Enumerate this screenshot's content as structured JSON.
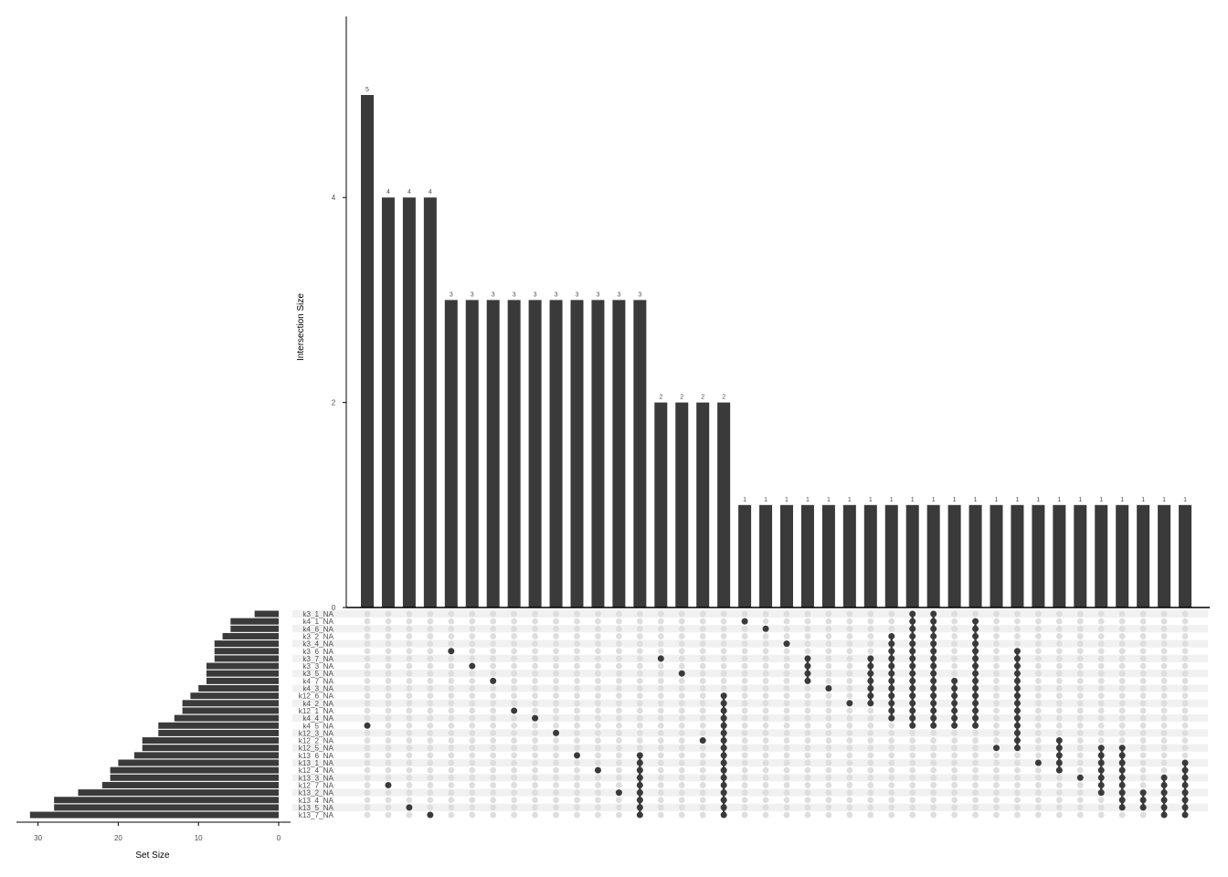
{
  "chart_data": {
    "type": "upset",
    "colors": {
      "bar": "#3a3a3a",
      "dot_active": "#3a3a3a",
      "dot_inactive": "#dedede",
      "stripe": "#f1f1f1"
    },
    "intersection_axis": {
      "ylabel": "Intersection Size",
      "ylim": [
        0,
        5.8
      ],
      "ticks": [
        0,
        2,
        4
      ]
    },
    "set_size_axis": {
      "xlabel": "Set Size",
      "xlim": [
        0,
        32
      ],
      "ticks": [
        30,
        20,
        10,
        0
      ]
    },
    "sets": [
      {
        "name": "k3_1_NA",
        "size": 3
      },
      {
        "name": "k4_1_NA",
        "size": 6
      },
      {
        "name": "k4_6_NA",
        "size": 6
      },
      {
        "name": "k3_2_NA",
        "size": 7
      },
      {
        "name": "k3_4_NA",
        "size": 8
      },
      {
        "name": "k3_6_NA",
        "size": 8
      },
      {
        "name": "k3_7_NA",
        "size": 8
      },
      {
        "name": "k3_3_NA",
        "size": 9
      },
      {
        "name": "k3_5_NA",
        "size": 9
      },
      {
        "name": "k4_7_NA",
        "size": 9
      },
      {
        "name": "k4_3_NA",
        "size": 10
      },
      {
        "name": "k12_6_NA",
        "size": 11
      },
      {
        "name": "k4_2_NA",
        "size": 12
      },
      {
        "name": "k12_1_NA",
        "size": 12
      },
      {
        "name": "k4_4_NA",
        "size": 13
      },
      {
        "name": "k4_5_NA",
        "size": 15
      },
      {
        "name": "k12_3_NA",
        "size": 15
      },
      {
        "name": "k12_2_NA",
        "size": 17
      },
      {
        "name": "k12_5_NA",
        "size": 17
      },
      {
        "name": "k13_6_NA",
        "size": 18
      },
      {
        "name": "k13_1_NA",
        "size": 20
      },
      {
        "name": "k12_4_NA",
        "size": 21
      },
      {
        "name": "k13_3_NA",
        "size": 21
      },
      {
        "name": "k12_7_NA",
        "size": 22
      },
      {
        "name": "k13_2_NA",
        "size": 25
      },
      {
        "name": "k13_4_NA",
        "size": 28
      },
      {
        "name": "k13_5_NA",
        "size": 28
      },
      {
        "name": "k13_7_NA",
        "size": 31
      }
    ],
    "intersections": [
      {
        "size": 5,
        "sets": [
          "k4_5_NA"
        ]
      },
      {
        "size": 4,
        "sets": [
          "k12_7_NA"
        ]
      },
      {
        "size": 4,
        "sets": [
          "k13_5_NA"
        ]
      },
      {
        "size": 4,
        "sets": [
          "k13_7_NA"
        ]
      },
      {
        "size": 3,
        "sets": [
          "k3_6_NA"
        ]
      },
      {
        "size": 3,
        "sets": [
          "k3_3_NA"
        ]
      },
      {
        "size": 3,
        "sets": [
          "k4_7_NA"
        ]
      },
      {
        "size": 3,
        "sets": [
          "k12_1_NA"
        ]
      },
      {
        "size": 3,
        "sets": [
          "k4_4_NA"
        ]
      },
      {
        "size": 3,
        "sets": [
          "k12_3_NA"
        ]
      },
      {
        "size": 3,
        "sets": [
          "k13_6_NA"
        ]
      },
      {
        "size": 3,
        "sets": [
          "k12_4_NA"
        ]
      },
      {
        "size": 3,
        "sets": [
          "k13_2_NA"
        ]
      },
      {
        "size": 3,
        "sets": [
          "k13_6_NA",
          "k13_1_NA",
          "k12_4_NA",
          "k13_3_NA",
          "k12_7_NA",
          "k13_2_NA",
          "k13_4_NA",
          "k13_5_NA",
          "k13_7_NA"
        ]
      },
      {
        "size": 2,
        "sets": [
          "k3_7_NA"
        ]
      },
      {
        "size": 2,
        "sets": [
          "k3_5_NA"
        ]
      },
      {
        "size": 2,
        "sets": [
          "k12_2_NA"
        ]
      },
      {
        "size": 2,
        "sets": [
          "k12_6_NA",
          "k4_2_NA",
          "k12_1_NA",
          "k4_4_NA",
          "k4_5_NA",
          "k12_3_NA",
          "k12_2_NA",
          "k12_5_NA",
          "k13_6_NA",
          "k13_1_NA",
          "k12_4_NA",
          "k13_3_NA",
          "k12_7_NA",
          "k13_2_NA",
          "k13_4_NA",
          "k13_5_NA",
          "k13_7_NA"
        ]
      },
      {
        "size": 1,
        "sets": [
          "k4_1_NA"
        ]
      },
      {
        "size": 1,
        "sets": [
          "k4_6_NA"
        ]
      },
      {
        "size": 1,
        "sets": [
          "k3_4_NA"
        ]
      },
      {
        "size": 1,
        "sets": [
          "k3_7_NA",
          "k3_3_NA",
          "k3_5_NA",
          "k4_7_NA"
        ]
      },
      {
        "size": 1,
        "sets": [
          "k4_3_NA"
        ]
      },
      {
        "size": 1,
        "sets": [
          "k4_2_NA"
        ]
      },
      {
        "size": 1,
        "sets": [
          "k3_7_NA",
          "k3_3_NA",
          "k3_5_NA",
          "k4_7_NA",
          "k4_3_NA",
          "k12_6_NA",
          "k4_2_NA"
        ]
      },
      {
        "size": 1,
        "sets": [
          "k3_2_NA",
          "k3_4_NA",
          "k3_6_NA",
          "k3_7_NA",
          "k3_3_NA",
          "k3_5_NA",
          "k4_7_NA",
          "k4_3_NA",
          "k12_6_NA",
          "k4_2_NA",
          "k12_1_NA",
          "k4_4_NA"
        ]
      },
      {
        "size": 1,
        "sets": [
          "k3_1_NA",
          "k4_1_NA",
          "k4_6_NA",
          "k3_2_NA",
          "k3_4_NA",
          "k3_6_NA",
          "k3_7_NA",
          "k3_3_NA",
          "k3_5_NA",
          "k4_7_NA",
          "k4_3_NA",
          "k12_6_NA",
          "k4_2_NA",
          "k12_1_NA",
          "k4_4_NA",
          "k4_5_NA"
        ]
      },
      {
        "size": 1,
        "sets": [
          "k3_1_NA",
          "k4_1_NA",
          "k4_6_NA",
          "k3_2_NA",
          "k3_4_NA",
          "k3_6_NA",
          "k3_7_NA",
          "k3_3_NA",
          "k3_5_NA",
          "k4_7_NA",
          "k4_3_NA",
          "k12_6_NA",
          "k4_2_NA",
          "k12_1_NA",
          "k4_4_NA",
          "k4_5_NA"
        ]
      },
      {
        "size": 1,
        "sets": [
          "k4_7_NA",
          "k4_3_NA",
          "k12_6_NA",
          "k4_2_NA",
          "k12_1_NA",
          "k4_4_NA",
          "k4_5_NA"
        ]
      },
      {
        "size": 1,
        "sets": [
          "k4_1_NA",
          "k4_6_NA",
          "k3_2_NA",
          "k3_4_NA",
          "k3_6_NA",
          "k3_7_NA",
          "k3_3_NA",
          "k3_5_NA",
          "k4_7_NA",
          "k4_3_NA",
          "k12_6_NA",
          "k4_2_NA",
          "k12_1_NA",
          "k4_4_NA",
          "k4_5_NA"
        ]
      },
      {
        "size": 1,
        "sets": [
          "k12_5_NA"
        ]
      },
      {
        "size": 1,
        "sets": [
          "k3_6_NA",
          "k3_7_NA",
          "k3_3_NA",
          "k3_5_NA",
          "k4_7_NA",
          "k4_3_NA",
          "k12_6_NA",
          "k4_2_NA",
          "k12_1_NA",
          "k4_4_NA",
          "k4_5_NA",
          "k12_3_NA",
          "k12_2_NA",
          "k12_5_NA"
        ]
      },
      {
        "size": 1,
        "sets": [
          "k13_1_NA"
        ]
      },
      {
        "size": 1,
        "sets": [
          "k12_2_NA",
          "k12_5_NA",
          "k13_6_NA",
          "k13_1_NA",
          "k12_4_NA"
        ]
      },
      {
        "size": 1,
        "sets": [
          "k13_3_NA"
        ]
      },
      {
        "size": 1,
        "sets": [
          "k12_5_NA",
          "k13_6_NA",
          "k13_1_NA",
          "k12_4_NA",
          "k13_3_NA",
          "k12_7_NA",
          "k13_2_NA"
        ]
      },
      {
        "size": 1,
        "sets": [
          "k12_5_NA",
          "k13_6_NA",
          "k13_1_NA",
          "k12_4_NA",
          "k13_3_NA",
          "k12_7_NA",
          "k13_2_NA",
          "k13_4_NA",
          "k13_5_NA"
        ]
      },
      {
        "size": 1,
        "sets": [
          "k13_2_NA",
          "k13_4_NA",
          "k13_5_NA"
        ]
      },
      {
        "size": 1,
        "sets": [
          "k13_3_NA",
          "k12_7_NA",
          "k13_2_NA",
          "k13_4_NA",
          "k13_5_NA",
          "k13_7_NA"
        ]
      },
      {
        "size": 1,
        "sets": [
          "k13_1_NA",
          "k12_4_NA",
          "k13_3_NA",
          "k12_7_NA",
          "k13_2_NA",
          "k13_4_NA",
          "k13_5_NA",
          "k13_7_NA"
        ]
      }
    ]
  }
}
